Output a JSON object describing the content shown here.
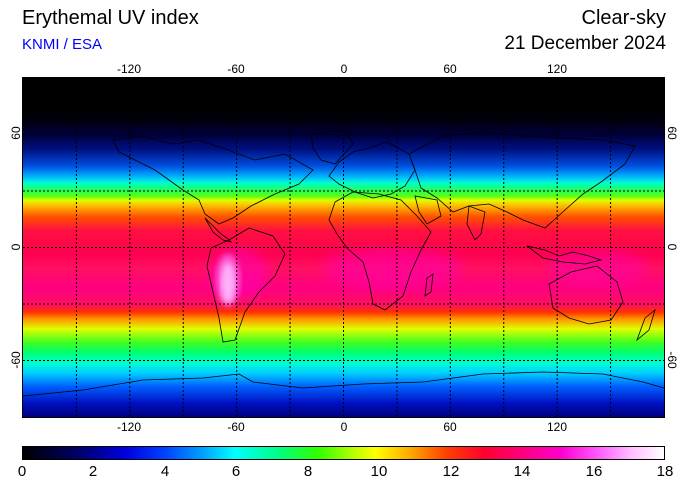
{
  "header": {
    "title": "Erythemal UV index",
    "credit": "KNMI / ESA",
    "sky_condition": "Clear-sky",
    "date": "21 December 2024"
  },
  "map": {
    "lon_range": [
      -180,
      180
    ],
    "lat_range": [
      -90,
      90
    ],
    "lon_ticks": [
      "-120",
      "-60",
      "0",
      "60",
      "120"
    ],
    "lat_ticks": [
      "60",
      "0",
      "-60"
    ],
    "grid": "dotted",
    "gridline_lons": [
      -150,
      -120,
      -90,
      -60,
      -30,
      0,
      30,
      60,
      90,
      120,
      150
    ],
    "gridline_lats": [
      60,
      30,
      0,
      -30,
      -60
    ]
  },
  "colorbar": {
    "min": 0,
    "max": 18,
    "ticks": [
      "0",
      "2",
      "4",
      "6",
      "8",
      "10",
      "12",
      "14",
      "16",
      "18"
    ]
  }
}
